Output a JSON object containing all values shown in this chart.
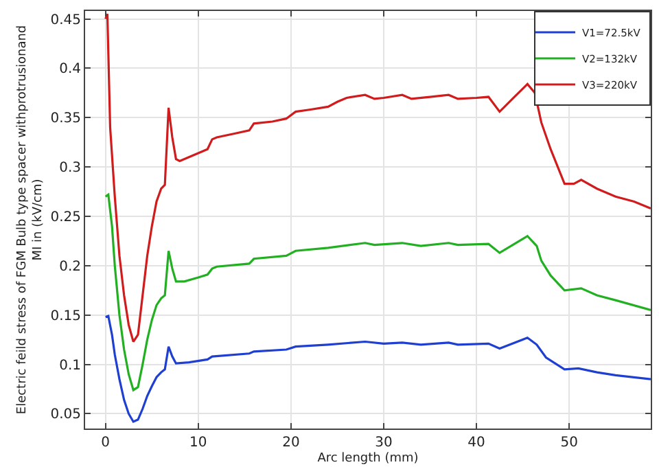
{
  "chart_data": {
    "type": "line",
    "xlabel": "Arc length (mm)",
    "ylabel": "Electric feild stress of FGM Bulb type spacer withprotrusionand MI in (kV/cm)",
    "xlim": [
      -2.2,
      58.8
    ],
    "ylim": [
      0.035,
      0.458
    ],
    "xticks": [
      0,
      10,
      20,
      30,
      40,
      50
    ],
    "yticks": [
      0.05,
      0.1,
      0.15,
      0.2,
      0.25,
      0.3,
      0.35,
      0.4,
      0.45
    ],
    "grid": true,
    "legend": "top right",
    "marker": "none",
    "line_style": "solid",
    "series": [
      {
        "name": "V1=72.5kV",
        "color": "#1f3fd0",
        "x": [
          0,
          0.3,
          0.7,
          1,
          1.5,
          2,
          2.5,
          3,
          3.5,
          4,
          4.5,
          5,
          5.5,
          6,
          6.4,
          6.8,
          7.2,
          7.6,
          9,
          11,
          11.5,
          15.5,
          16,
          19.5,
          20.5,
          24,
          28,
          30,
          32,
          34,
          37,
          38,
          41.3,
          42.5,
          45.5,
          46.5,
          47.5,
          49.5,
          51,
          53,
          55,
          58.8
        ],
        "values": [
          0.148,
          0.149,
          0.13,
          0.11,
          0.085,
          0.064,
          0.05,
          0.042,
          0.044,
          0.055,
          0.068,
          0.078,
          0.087,
          0.092,
          0.095,
          0.118,
          0.108,
          0.101,
          0.102,
          0.105,
          0.108,
          0.111,
          0.113,
          0.115,
          0.118,
          0.12,
          0.123,
          0.121,
          0.122,
          0.12,
          0.122,
          0.12,
          0.121,
          0.116,
          0.127,
          0.12,
          0.107,
          0.095,
          0.096,
          0.092,
          0.089,
          0.085
        ]
      },
      {
        "name": "V2=132kV",
        "color": "#22b022",
        "x": [
          0,
          0.3,
          0.7,
          1,
          1.5,
          2,
          2.5,
          3,
          3.5,
          4,
          4.5,
          5,
          5.5,
          6,
          6.4,
          6.8,
          7.2,
          7.6,
          8.5,
          10,
          11,
          11.5,
          12,
          15.5,
          16,
          19.5,
          20.5,
          24,
          28,
          29,
          32,
          34,
          37,
          38,
          41.3,
          42.5,
          45.5,
          46.5,
          47,
          48,
          49.5,
          51.3,
          53,
          55,
          58.8
        ],
        "values": [
          0.27,
          0.272,
          0.24,
          0.2,
          0.15,
          0.115,
          0.09,
          0.074,
          0.077,
          0.1,
          0.125,
          0.145,
          0.16,
          0.167,
          0.17,
          0.215,
          0.197,
          0.184,
          0.184,
          0.188,
          0.191,
          0.197,
          0.199,
          0.202,
          0.207,
          0.21,
          0.215,
          0.218,
          0.223,
          0.221,
          0.223,
          0.22,
          0.223,
          0.221,
          0.222,
          0.213,
          0.23,
          0.22,
          0.205,
          0.19,
          0.175,
          0.177,
          0.17,
          0.165,
          0.155
        ]
      },
      {
        "name": "V3=220kV",
        "color": "#d01c1c",
        "x": [
          0,
          0.2,
          0.5,
          1,
          1.5,
          2,
          2.5,
          3,
          3.5,
          4,
          4.5,
          5,
          5.5,
          6,
          6.4,
          6.8,
          7.2,
          7.6,
          8,
          9,
          10,
          11,
          11.5,
          12,
          14,
          15.5,
          16,
          18,
          19.5,
          20.5,
          22,
          24,
          25,
          26,
          28,
          29,
          30,
          32,
          33,
          35,
          37,
          38,
          40,
          41.3,
          42.5,
          44,
          45.5,
          46.3,
          47,
          48,
          49.5,
          50.5,
          51.3,
          53,
          55,
          57,
          58.8
        ],
        "values": [
          0.45,
          0.455,
          0.34,
          0.27,
          0.21,
          0.17,
          0.14,
          0.123,
          0.13,
          0.17,
          0.21,
          0.24,
          0.265,
          0.278,
          0.282,
          0.36,
          0.33,
          0.308,
          0.306,
          0.31,
          0.314,
          0.318,
          0.328,
          0.33,
          0.334,
          0.337,
          0.344,
          0.346,
          0.349,
          0.356,
          0.358,
          0.361,
          0.366,
          0.37,
          0.373,
          0.369,
          0.37,
          0.373,
          0.369,
          0.371,
          0.373,
          0.369,
          0.37,
          0.371,
          0.356,
          0.37,
          0.384,
          0.375,
          0.345,
          0.318,
          0.283,
          0.283,
          0.287,
          0.278,
          0.27,
          0.265,
          0.258
        ]
      }
    ]
  }
}
